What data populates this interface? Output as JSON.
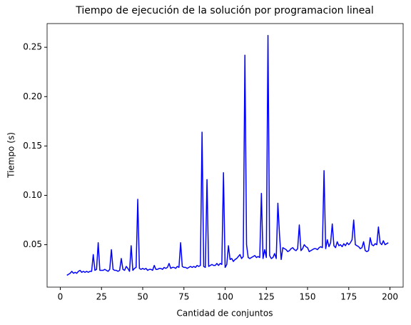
{
  "chart_data": {
    "type": "line",
    "title": "Tiempo de ejecución de la solución por programacion lineal",
    "xlabel": "Cantidad de conjuntos",
    "ylabel": "Tiempo (s)",
    "x": [
      4,
      5,
      6,
      7,
      8,
      9,
      10,
      11,
      12,
      13,
      14,
      15,
      16,
      17,
      18,
      19,
      20,
      21,
      22,
      23,
      24,
      25,
      26,
      27,
      28,
      29,
      30,
      31,
      32,
      33,
      34,
      35,
      36,
      37,
      38,
      39,
      40,
      41,
      42,
      43,
      44,
      45,
      46,
      47,
      48,
      49,
      50,
      51,
      52,
      53,
      54,
      55,
      56,
      57,
      58,
      59,
      60,
      61,
      62,
      63,
      64,
      65,
      66,
      67,
      68,
      69,
      70,
      71,
      72,
      73,
      74,
      75,
      76,
      77,
      78,
      79,
      80,
      81,
      82,
      83,
      84,
      85,
      86,
      87,
      88,
      89,
      90,
      91,
      92,
      93,
      94,
      95,
      96,
      97,
      98,
      99,
      100,
      101,
      102,
      103,
      104,
      105,
      106,
      107,
      108,
      109,
      110,
      111,
      112,
      113,
      114,
      115,
      116,
      117,
      118,
      119,
      120,
      121,
      122,
      123,
      124,
      125,
      126,
      127,
      128,
      129,
      130,
      131,
      132,
      133,
      134,
      135,
      136,
      137,
      138,
      139,
      140,
      141,
      142,
      143,
      144,
      145,
      146,
      147,
      148,
      149,
      150,
      151,
      152,
      153,
      154,
      155,
      156,
      157,
      158,
      159,
      160,
      161,
      162,
      163,
      164,
      165,
      166,
      167,
      168,
      169,
      170,
      171,
      172,
      173,
      174,
      175,
      176,
      177,
      178,
      179,
      180,
      181,
      182,
      183,
      184,
      185,
      186,
      187,
      188,
      189,
      190,
      191,
      192,
      193,
      194,
      195,
      196,
      197,
      198,
      199
    ],
    "series": [
      {
        "name": "Tiempo",
        "color": "#0000ff",
        "values": [
          0.019,
          0.02,
          0.021,
          0.023,
          0.021,
          0.022,
          0.021,
          0.023,
          0.024,
          0.022,
          0.023,
          0.022,
          0.023,
          0.022,
          0.023,
          0.023,
          0.04,
          0.024,
          0.025,
          0.052,
          0.024,
          0.024,
          0.024,
          0.025,
          0.024,
          0.023,
          0.025,
          0.045,
          0.025,
          0.024,
          0.024,
          0.023,
          0.024,
          0.036,
          0.025,
          0.024,
          0.028,
          0.026,
          0.023,
          0.049,
          0.024,
          0.026,
          0.027,
          0.096,
          0.026,
          0.025,
          0.026,
          0.025,
          0.026,
          0.024,
          0.025,
          0.025,
          0.024,
          0.029,
          0.025,
          0.025,
          0.026,
          0.026,
          0.025,
          0.027,
          0.026,
          0.027,
          0.031,
          0.026,
          0.027,
          0.027,
          0.026,
          0.028,
          0.027,
          0.052,
          0.028,
          0.027,
          0.027,
          0.026,
          0.027,
          0.028,
          0.027,
          0.028,
          0.027,
          0.029,
          0.028,
          0.029,
          0.164,
          0.028,
          0.027,
          0.116,
          0.028,
          0.029,
          0.03,
          0.029,
          0.029,
          0.031,
          0.029,
          0.031,
          0.03,
          0.123,
          0.027,
          0.03,
          0.049,
          0.035,
          0.036,
          0.033,
          0.035,
          0.036,
          0.038,
          0.04,
          0.036,
          0.038,
          0.242,
          0.05,
          0.037,
          0.036,
          0.037,
          0.038,
          0.039,
          0.037,
          0.038,
          0.037,
          0.102,
          0.036,
          0.045,
          0.037,
          0.262,
          0.039,
          0.036,
          0.037,
          0.041,
          0.036,
          0.092,
          0.06,
          0.035,
          0.047,
          0.046,
          0.045,
          0.043,
          0.044,
          0.046,
          0.047,
          0.045,
          0.044,
          0.046,
          0.07,
          0.044,
          0.046,
          0.05,
          0.048,
          0.047,
          0.043,
          0.044,
          0.045,
          0.046,
          0.046,
          0.045,
          0.047,
          0.048,
          0.047,
          0.125,
          0.046,
          0.055,
          0.048,
          0.052,
          0.071,
          0.049,
          0.047,
          0.053,
          0.049,
          0.05,
          0.048,
          0.051,
          0.049,
          0.052,
          0.05,
          0.052,
          0.055,
          0.075,
          0.05,
          0.049,
          0.048,
          0.046,
          0.047,
          0.053,
          0.044,
          0.043,
          0.044,
          0.057,
          0.05,
          0.049,
          0.051,
          0.05,
          0.068,
          0.052,
          0.05,
          0.054,
          0.05,
          0.051,
          0.052
        ]
      }
    ],
    "xlim": [
      -8,
      208
    ],
    "xticks": [
      0,
      25,
      50,
      75,
      100,
      125,
      150,
      175,
      200
    ],
    "ylim": [
      0.007,
      0.274
    ],
    "yticks": [
      0.05,
      {
        "value": 0.1,
        "label": "0.10"
      },
      0.15,
      {
        "value": 0.2,
        "label": "0.20"
      },
      0.25
    ],
    "grid": false
  }
}
